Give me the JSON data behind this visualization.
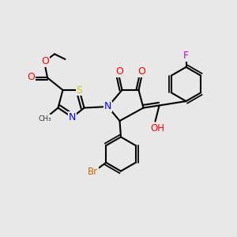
{
  "background_color": "#e8e8e8",
  "fig_width": 3.0,
  "fig_height": 3.0,
  "dpi": 100,
  "atom_colors": {
    "O": "#ff0000",
    "N": "#0000ff",
    "S": "#cccc00",
    "F": "#cc00cc",
    "Br": "#cc6600",
    "C": "#000000",
    "H": "#000000"
  },
  "bond_color": "#000000",
  "bond_width": 1.5,
  "font_size_atom": 9
}
